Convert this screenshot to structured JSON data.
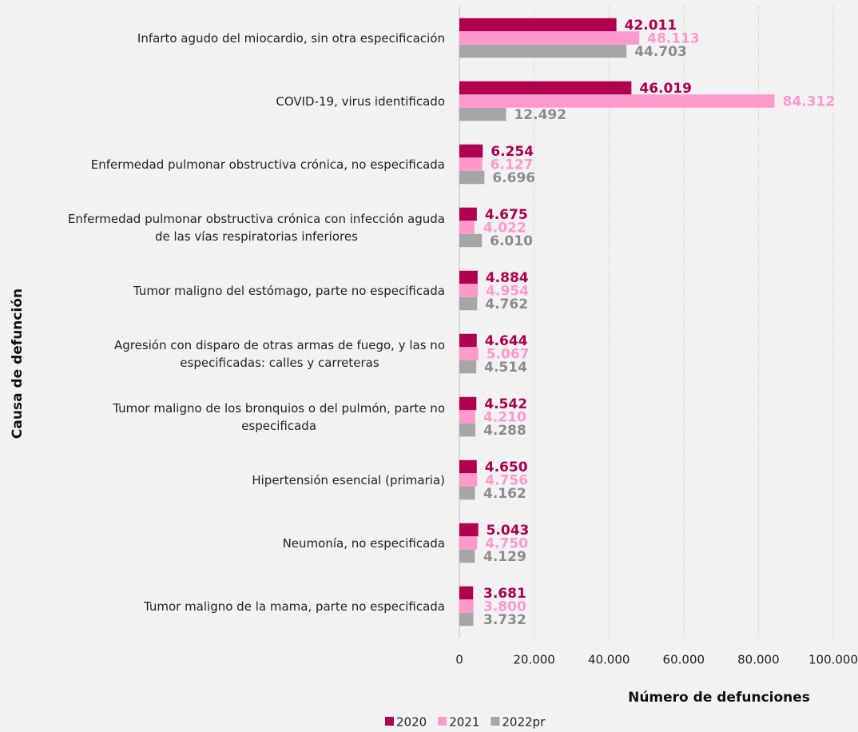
{
  "chart_data": {
    "type": "hbar",
    "categories": [
      "Infarto agudo del miocardio, sin otra especificación",
      "COVID-19, virus identificado",
      "Enfermedad pulmonar obstructiva crónica, no especificada",
      "Enfermedad pulmonar obstructiva crónica con infección aguda\nde las vías respiratorias inferiores",
      "Tumor maligno del estómago, parte no especificada",
      "Agresión con disparo de otras armas de fuego, y las no\nespecificadas: calles y carreteras",
      "Tumor maligno de los bronquios o del pulmón, parte no\nespecificada",
      "Hipertensión esencial (primaria)",
      "Neumonía, no especificada",
      "Tumor maligno de la mama, parte no especificada"
    ],
    "series": [
      {
        "name": "2020",
        "color": "#b0004f",
        "label_color": "#b0004f",
        "values": [
          42011,
          46019,
          6254,
          4675,
          4884,
          4644,
          4542,
          4650,
          5043,
          3681
        ],
        "value_labels": [
          "42.011",
          "46.019",
          "6.254",
          "4.675",
          "4.884",
          "4.644",
          "4.542",
          "4.650",
          "5.043",
          "3.681"
        ]
      },
      {
        "name": "2021",
        "color": "#ff99cc",
        "label_color": "#ff99cc",
        "values": [
          48113,
          84312,
          6127,
          4022,
          4954,
          5067,
          4210,
          4756,
          4750,
          3800
        ],
        "value_labels": [
          "48.113",
          "84.312",
          "6.127",
          "4.022",
          "4.954",
          "5.067",
          "4.210",
          "4.756",
          "4.750",
          "3.800"
        ]
      },
      {
        "name": "2022pr",
        "color": "#a6a6a6",
        "label_color": "#8c8c8c",
        "values": [
          44703,
          12492,
          6696,
          6010,
          4762,
          4514,
          4288,
          4162,
          4129,
          3732
        ],
        "value_labels": [
          "44.703",
          "12.492",
          "6.696",
          "6.010",
          "4.762",
          "4.514",
          "4.288",
          "4.162",
          "4.129",
          "3.732"
        ]
      }
    ],
    "x_label": "Número de defunciones",
    "y_label": "Causa de defunción",
    "xlim": [
      0,
      100000
    ],
    "xticks": [
      0,
      {
        "value": 20000,
        "label": "20.000"
      },
      {
        "value": 40000,
        "label": "40.000"
      },
      {
        "value": 60000,
        "label": "60.000"
      },
      {
        "value": 80000,
        "label": "80.000"
      },
      {
        "value": 100000,
        "label": "100.000"
      }
    ],
    "grid": true,
    "legend": "bottom"
  }
}
